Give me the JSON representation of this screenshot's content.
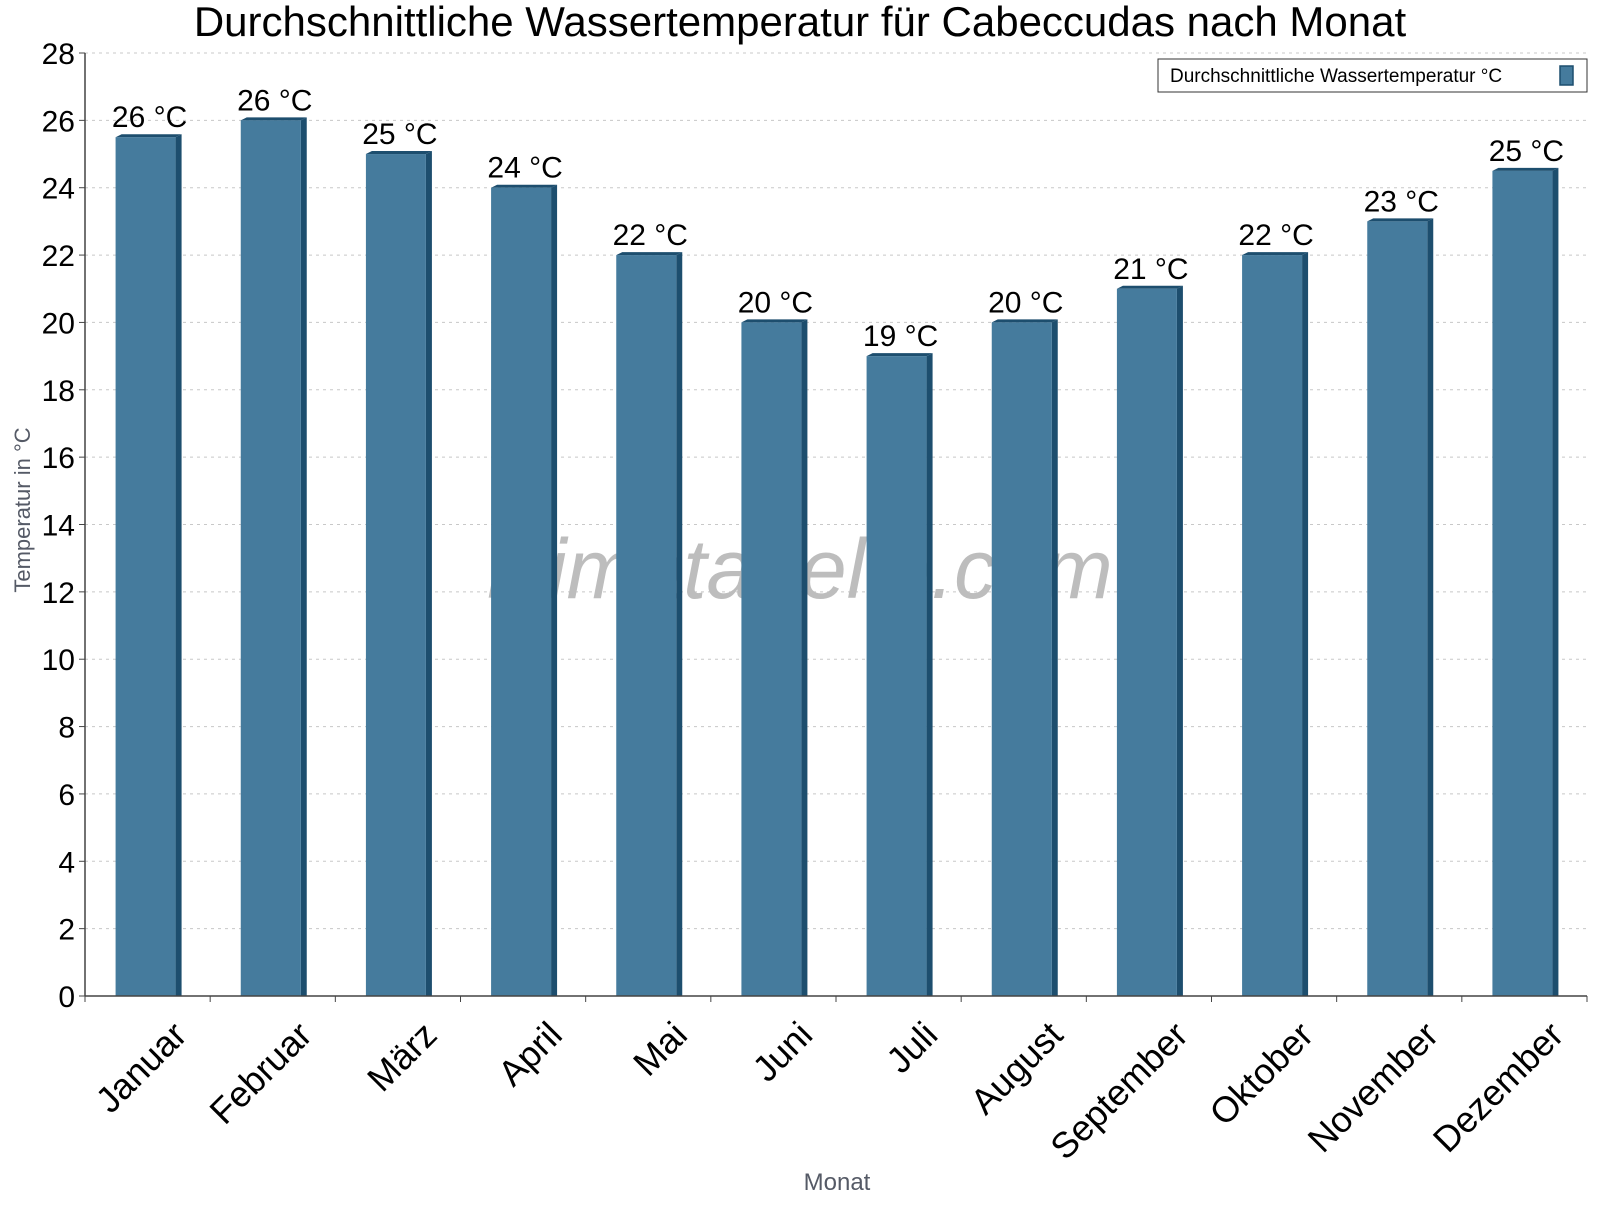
{
  "chart_data": {
    "type": "bar",
    "title": "Durchschnittliche Wassertemperatur für Cabeccudas nach Monat",
    "xlabel": "Monat",
    "ylabel": "Temperatur in °C",
    "categories": [
      "Januar",
      "Februar",
      "März",
      "April",
      "Mai",
      "Juni",
      "Juli",
      "August",
      "September",
      "Oktober",
      "November",
      "Dezember"
    ],
    "series": [
      {
        "name": "Durchschnittliche Wassertemperatur °C",
        "values": [
          25.5,
          26,
          25,
          24,
          22,
          20,
          19,
          20,
          21,
          22,
          23,
          24.5
        ],
        "labels": [
          "26 °C",
          "26 °C",
          "25 °C",
          "24 °C",
          "22 °C",
          "20 °C",
          "19 °C",
          "20 °C",
          "21 °C",
          "22 °C",
          "23 °C",
          "25 °C"
        ]
      }
    ],
    "ylim": [
      0,
      28
    ],
    "yticks": [
      0,
      2,
      4,
      6,
      8,
      10,
      12,
      14,
      16,
      18,
      20,
      22,
      24,
      26,
      28
    ],
    "grid": true,
    "legend_position": "top-right",
    "colors": {
      "bar": "#457b9d",
      "bar_dark": "#1d4e6e",
      "grid": "#c8c8c8",
      "axis": "#444444"
    },
    "watermark": "klimatabelle.com"
  }
}
